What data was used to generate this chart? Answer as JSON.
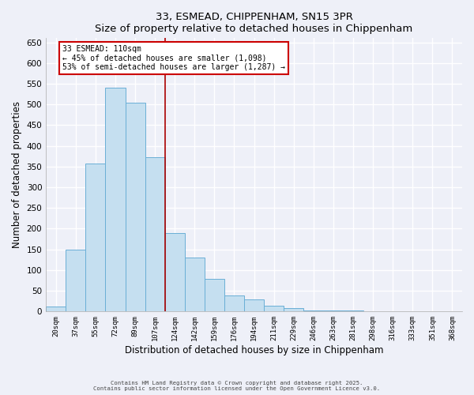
{
  "title": "33, ESMEAD, CHIPPENHAM, SN15 3PR",
  "subtitle": "Size of property relative to detached houses in Chippenham",
  "xlabel": "Distribution of detached houses by size in Chippenham",
  "ylabel": "Number of detached properties",
  "bar_labels": [
    "20sqm",
    "37sqm",
    "55sqm",
    "72sqm",
    "89sqm",
    "107sqm",
    "124sqm",
    "142sqm",
    "159sqm",
    "176sqm",
    "194sqm",
    "211sqm",
    "229sqm",
    "246sqm",
    "263sqm",
    "281sqm",
    "298sqm",
    "316sqm",
    "333sqm",
    "351sqm",
    "368sqm"
  ],
  "bar_values": [
    13,
    150,
    357,
    540,
    505,
    372,
    190,
    130,
    79,
    39,
    29,
    14,
    9,
    3,
    2,
    2,
    1,
    0,
    0,
    0,
    1
  ],
  "bar_color": "#c5dff0",
  "bar_edge_color": "#6aafd6",
  "vline_color": "#aa0000",
  "annotation_title": "33 ESMEAD: 110sqm",
  "annotation_line1": "← 45% of detached houses are smaller (1,098)",
  "annotation_line2": "53% of semi-detached houses are larger (1,287) →",
  "annotation_box_color": "#ffffff",
  "annotation_box_edge_color": "#cc0000",
  "ylim": [
    0,
    660
  ],
  "yticks": [
    0,
    50,
    100,
    150,
    200,
    250,
    300,
    350,
    400,
    450,
    500,
    550,
    600,
    650
  ],
  "footer1": "Contains HM Land Registry data © Crown copyright and database right 2025.",
  "footer2": "Contains public sector information licensed under the Open Government Licence v3.0.",
  "background_color": "#eef0f8",
  "grid_color": "#ffffff"
}
